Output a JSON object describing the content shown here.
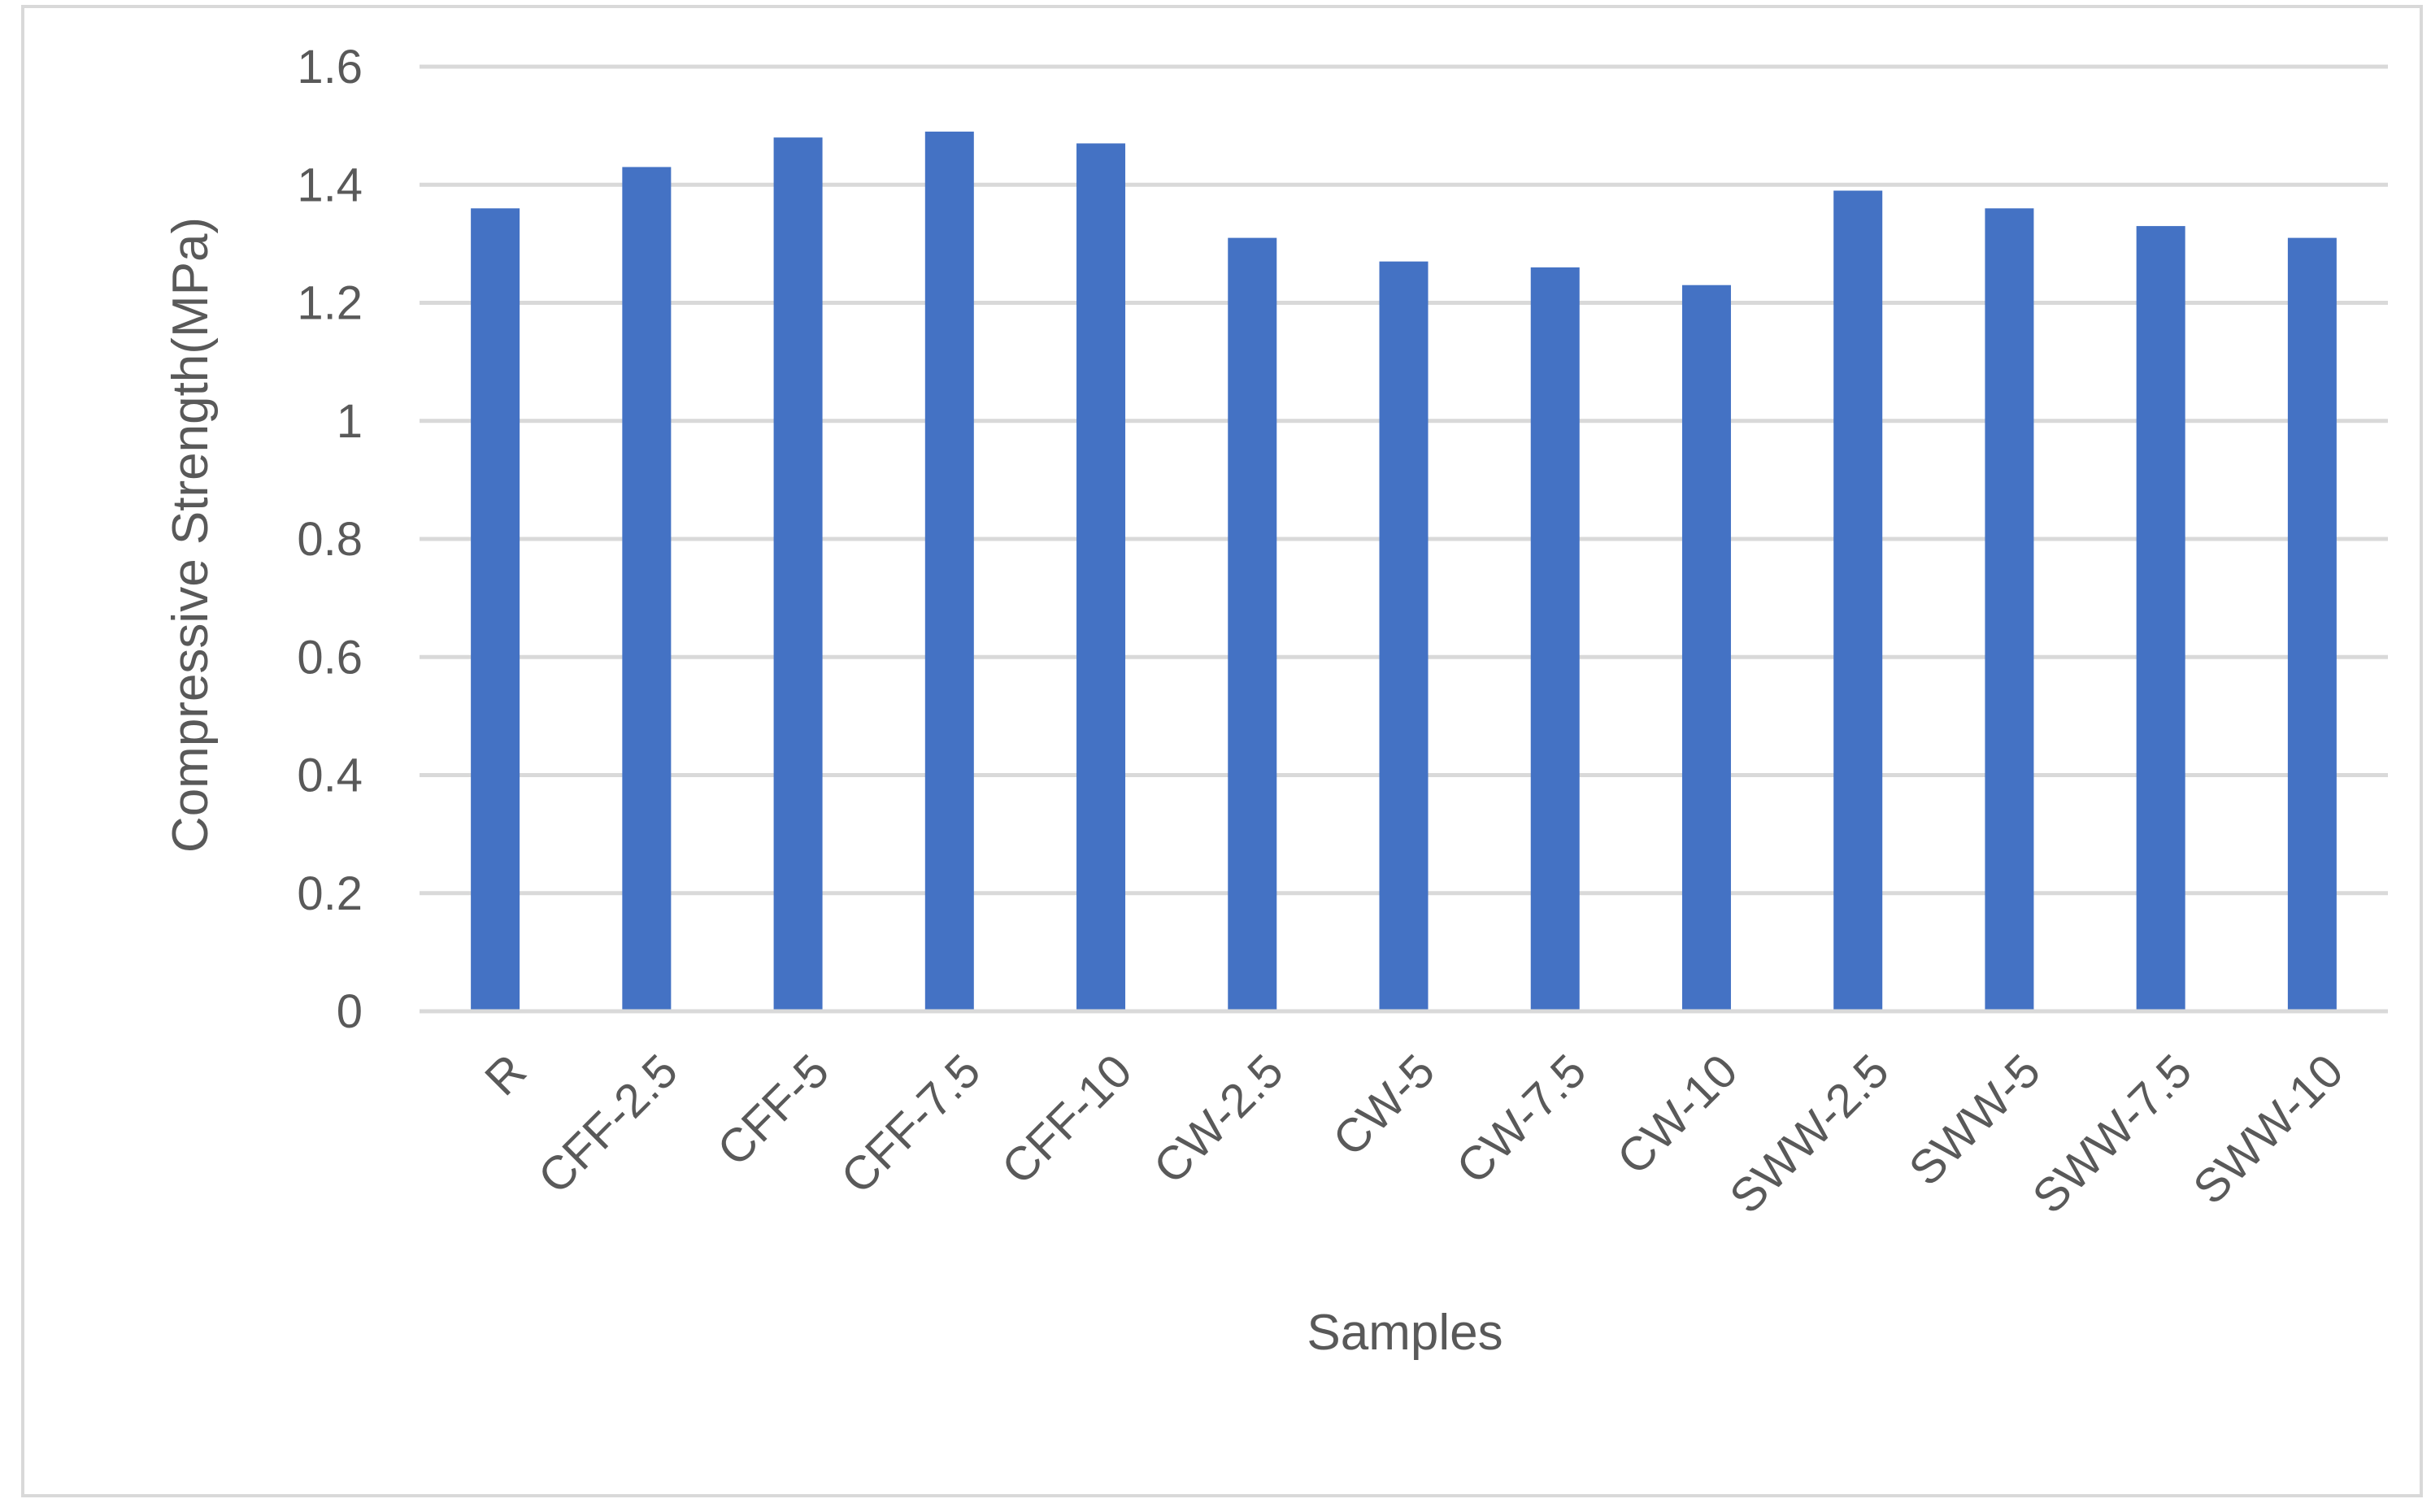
{
  "chart_data": {
    "type": "bar",
    "title": "",
    "xlabel": "Samples",
    "ylabel": "Compressive Strength(MPa)",
    "categories": [
      "R",
      "CFF-2.5",
      "CFF-5",
      "CFF-7.5",
      "CFF-10",
      "CW-2.5",
      "CW-5",
      "CW-7.5",
      "CW-10",
      "SWW-2.5",
      "SWW-5",
      "SWW-7.5",
      "SWW-10"
    ],
    "values": [
      1.36,
      1.43,
      1.48,
      1.49,
      1.47,
      1.31,
      1.27,
      1.26,
      1.23,
      1.39,
      1.36,
      1.33,
      1.31
    ],
    "ylim": [
      0,
      1.6
    ],
    "yticks": [
      "0",
      "0.2",
      "0.4",
      "0.6",
      "0.8",
      "1",
      "1.2",
      "1.4",
      "1.6"
    ],
    "grid": true,
    "legend": "none",
    "colors": {
      "bar": "#4472C4",
      "grid": "#D9D9D9",
      "axis": "#D9D9D9",
      "text": "#595959",
      "border": "#D9D9D9"
    }
  }
}
